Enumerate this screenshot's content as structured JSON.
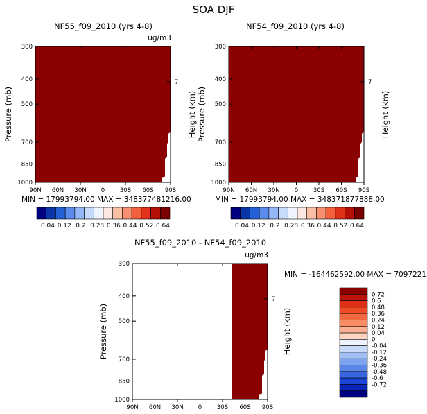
{
  "figure_title": "SOA DJF",
  "chart_data": [
    {
      "type": "heatmap",
      "title": "NF55_f09_2010 (yrs 4-8)",
      "units": "ug/m3",
      "ylabel": "Pressure (mb)",
      "ylabel_right": "Height (km)",
      "x_ticks": [
        "90N",
        "60N",
        "30N",
        "0",
        "30S",
        "60S",
        "90S"
      ],
      "y_ticks": [
        "300",
        "400",
        "500",
        "700",
        "850",
        "1000"
      ],
      "right_ticks": [
        "7"
      ],
      "ylim": [
        1000,
        300
      ],
      "y_scale": "log",
      "min_max_text": "MIN = 17993794.00   MAX = 348377481216.00",
      "fill_color": "#8b0000",
      "fill_extent": {
        "lat_from": 90,
        "lat_to": -90
      }
    },
    {
      "type": "heatmap",
      "title": "NF54_f09_2010 (yrs 4-8)",
      "ylabel": "Pressure (mb)",
      "ylabel_right": "Height (km)",
      "x_ticks": [
        "90N",
        "60N",
        "30N",
        "0",
        "30S",
        "60S",
        "90S"
      ],
      "y_ticks": [
        "300",
        "400",
        "500",
        "700",
        "850",
        "1000"
      ],
      "right_ticks": [
        "7"
      ],
      "ylim": [
        1000,
        300
      ],
      "y_scale": "log",
      "min_max_text": "MIN = 17993794.00   MAX = 348371877888.00",
      "fill_color": "#8b0000",
      "fill_extent": {
        "lat_from": 90,
        "lat_to": -90
      }
    },
    {
      "type": "heatmap",
      "title": "NF55_f09_2010 - NF54_f09_2010",
      "units": "ug/m3",
      "ylabel": "Pressure (mb)",
      "ylabel_right": "Height (km)",
      "x_ticks": [
        "90N",
        "60N",
        "30N",
        "0",
        "30S",
        "60S",
        "90S"
      ],
      "y_ticks": [
        "300",
        "400",
        "500",
        "700",
        "850",
        "1000"
      ],
      "right_ticks": [
        "7"
      ],
      "ylim": [
        1000,
        300
      ],
      "y_scale": "log",
      "min_max_text": "MIN = -164462592.00   MAX = 7097221",
      "fill_color": "#8b0000",
      "fill_extent": {
        "lat_from": -42,
        "lat_to": -90
      }
    }
  ],
  "colorbars": {
    "top": {
      "labels": [
        "0.04",
        "0.12",
        "0.2",
        "0.28",
        "0.36",
        "0.44",
        "0.52",
        "0.64"
      ],
      "colors": [
        "#000080",
        "#0a35a8",
        "#2460d6",
        "#5a8cf0",
        "#95b7f7",
        "#c7dafb",
        "#eef3fd",
        "#fde8e1",
        "#fbbfa6",
        "#f79070",
        "#f2603c",
        "#e03218",
        "#b41008",
        "#7a0000"
      ]
    },
    "diff": {
      "labels": [
        "0.72",
        "0.6",
        "0.48",
        "0.36",
        "0.24",
        "0.12",
        "0.04",
        "0",
        "-0.04",
        "-0.12",
        "-0.24",
        "-0.36",
        "-0.48",
        "-0.6",
        "-0.72"
      ],
      "colors": [
        "#8b0000",
        "#bb1508",
        "#dd3015",
        "#ee4a25",
        "#f46a40",
        "#f88d64",
        "#fbb092",
        "#fdd4c0",
        "#eef3fd",
        "#c8daf8",
        "#a2c0f4",
        "#7ea4ee",
        "#5a86e8",
        "#3865e0",
        "#1a45d6",
        "#0a25b8",
        "#000080"
      ]
    }
  }
}
